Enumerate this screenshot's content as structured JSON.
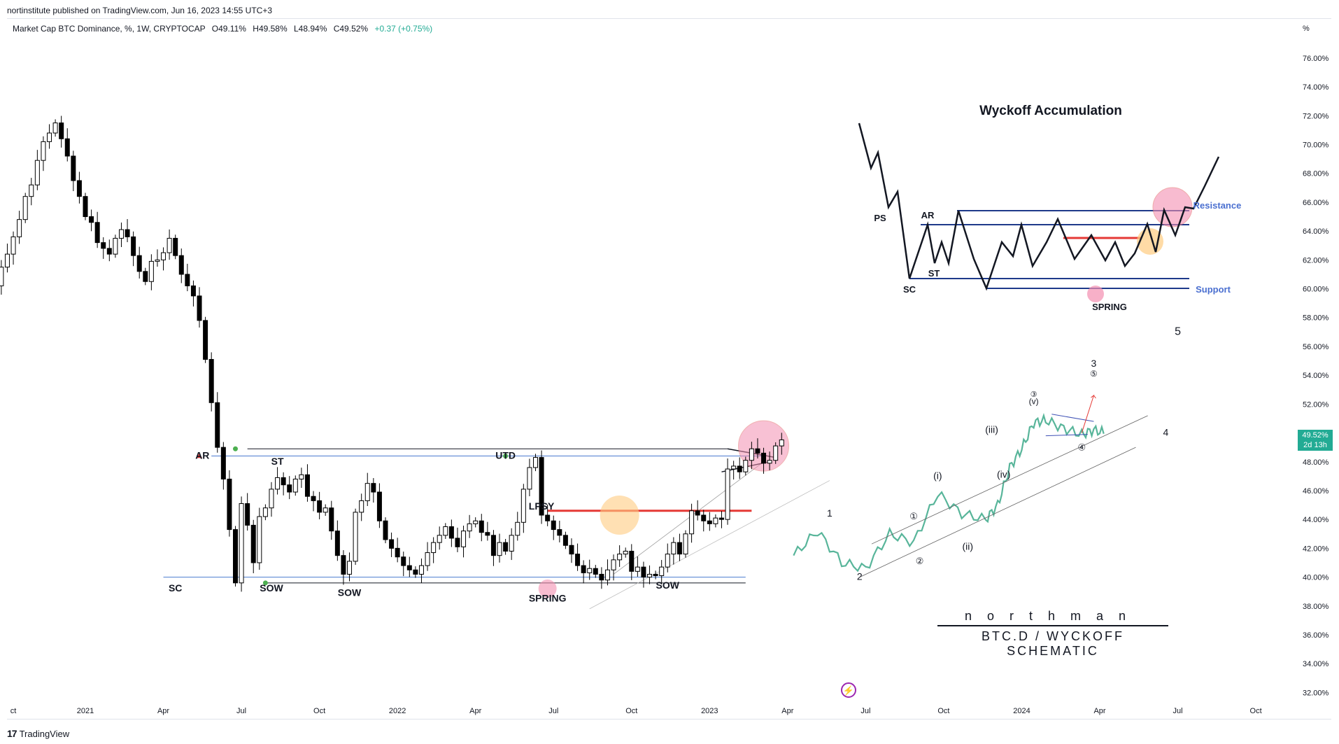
{
  "header": {
    "published": "nortinstitute published on TradingView.com, Jun 16, 2023 14:55 UTC+3"
  },
  "legend": {
    "symbol": "Market Cap BTC Dominance, %, 1W, CRYPTOCAP",
    "open": "O49.11%",
    "high": "H49.58%",
    "low": "L48.94%",
    "close": "C49.52%",
    "change": "+0.37 (+0.75%)"
  },
  "price_badge": {
    "price": "49.52%",
    "countdown": "2d 13h"
  },
  "footer": {
    "logo_text": "TradingView",
    "logo_mark": "17"
  },
  "brand": {
    "name": "northman",
    "subtitle": "BTC.D / WYCKOFF SCHEMATIC"
  },
  "colors": {
    "up_candle": "#ffffff",
    "down_candle": "#000000",
    "wick": "#000000",
    "support_line": "#4a7bd0",
    "red_line": "#e53935",
    "green_dot": "#4caf50",
    "pink_circle": "#f48fb1",
    "orange_circle": "#ffcc80",
    "wave_teal": "#58b59a",
    "schematic_blue": "#1e3a8a",
    "badge": "#22ab94"
  },
  "chart_data": {
    "type": "candlestick",
    "title": "",
    "symbol": "Market Cap BTC Dominance",
    "timeframe": "1W",
    "ylabel": "%",
    "ylim": [
      31,
      77.5
    ],
    "y_ticks": [
      "76.00%",
      "74.00%",
      "72.00%",
      "70.00%",
      "68.00%",
      "66.00%",
      "64.00%",
      "62.00%",
      "60.00%",
      "58.00%",
      "56.00%",
      "54.00%",
      "52.00%",
      "50.00%",
      "48.00%",
      "46.00%",
      "44.00%",
      "42.00%",
      "40.00%",
      "38.00%",
      "36.00%",
      "34.00%",
      "32.00%"
    ],
    "y_tick_values": [
      76,
      74,
      72,
      70,
      68,
      66,
      64,
      62,
      60,
      58,
      56,
      54,
      52,
      50,
      48,
      46,
      44,
      42,
      40,
      38,
      36,
      34,
      32
    ],
    "x_ticks": [
      "ct",
      "2021",
      "Apr",
      "Jul",
      "Oct",
      "2022",
      "Apr",
      "Jul",
      "Oct",
      "2023",
      "Apr",
      "Jul",
      "Oct",
      "2024",
      "Apr",
      "Jul",
      "Oct"
    ],
    "x_tick_week": [
      -12,
      0,
      13,
      26,
      39,
      52,
      65,
      78,
      91,
      104,
      117,
      130,
      143,
      156,
      169,
      182,
      195
    ],
    "close_series": [
      60.2,
      61.5,
      62.4,
      63.6,
      64.8,
      66.4,
      67.2,
      68.9,
      70.2,
      70.8,
      71.5,
      70.4,
      69.2,
      67.5,
      66.4,
      65.0,
      64.6,
      63.2,
      62.8,
      62.4,
      63.5,
      64.1,
      63.6,
      62.3,
      61.2,
      60.5,
      61.9,
      62.0,
      62.5,
      63.5,
      62.3,
      61.0,
      60.2,
      59.5,
      57.8,
      55.1,
      52.1,
      49.0,
      46.8,
      43.3,
      39.6,
      45.1,
      43.6,
      41.0,
      44.2,
      44.8,
      46.1,
      46.9,
      46.4,
      45.9,
      46.8,
      47.1,
      45.6,
      45.3,
      44.5,
      44.8,
      43.2,
      41.5,
      40.2,
      41.1,
      44.5,
      45.3,
      46.5,
      45.9,
      43.9,
      42.6,
      42.0,
      41.4,
      40.8,
      40.5,
      40.2,
      40.8,
      41.7,
      42.4,
      42.9,
      43.5,
      42.7,
      42.1,
      43.2,
      43.7,
      43.9,
      43.1,
      42.9,
      41.5,
      42.4,
      41.8,
      42.9,
      43.8,
      46.1,
      47.6,
      48.3,
      44.3,
      43.9,
      43.3,
      42.9,
      42.2,
      41.6,
      40.8,
      40.3,
      40.6,
      40.2,
      39.8,
      40.5,
      41.2,
      41.6,
      41.8,
      40.4,
      40.7,
      40.0,
      40.2,
      40.1,
      40.7,
      41.6,
      42.4,
      41.6,
      43.0,
      44.6,
      44.3,
      43.9,
      43.7,
      44.1,
      44.0,
      47.5,
      47.7,
      47.3,
      48.1,
      48.9,
      48.6,
      47.9,
      48.1,
      49.1,
      49.52
    ],
    "horizontal_levels": [
      {
        "label": "resistance",
        "value": 48.9
      },
      {
        "label": "range high",
        "value": 48.4
      },
      {
        "label": "lpsy level",
        "value": 44.6
      },
      {
        "label": "range low",
        "value": 40.0
      },
      {
        "label": "spring low",
        "value": 39.6
      }
    ],
    "annotations": [
      "SC",
      "AR",
      "ST",
      "SOW",
      "SOW",
      "UTD",
      "LPSY",
      "SPRING",
      "SOW"
    ],
    "wave_labels": [
      "1",
      "2",
      "3",
      "4",
      "5",
      "(i)",
      "(ii)",
      "(iii)",
      "(iv)",
      "(v)",
      "①",
      "②",
      "③",
      "④",
      "⑤"
    ],
    "schematic": {
      "title": "Wyckoff Accumulation",
      "labels": [
        "PS",
        "AR",
        "SC",
        "ST",
        "SPRING",
        "Resistance",
        "Support"
      ]
    }
  }
}
